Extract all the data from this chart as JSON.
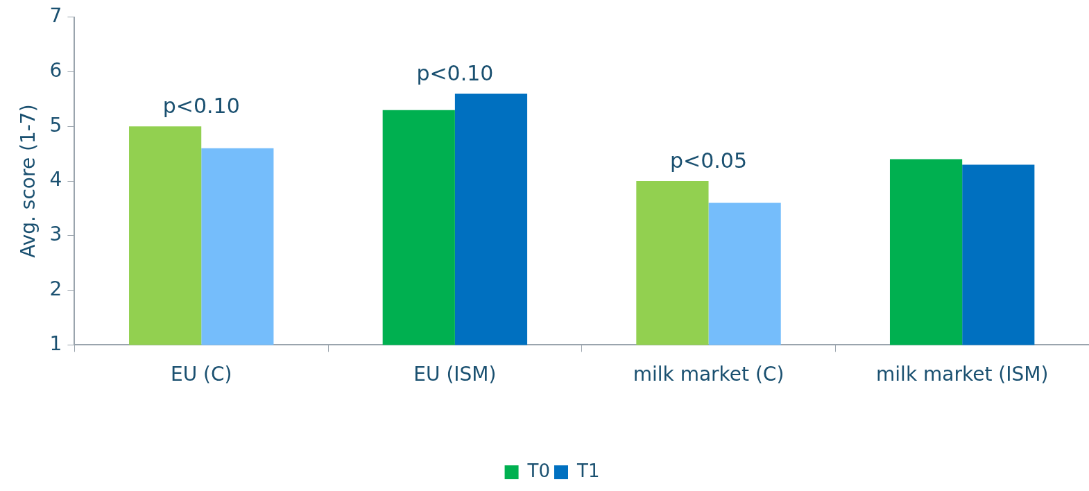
{
  "chart_data": {
    "type": "bar",
    "ylabel": "Avg. score (1-7)",
    "categories": [
      "EU (C)",
      "EU (ISM)",
      "milk market (C)",
      "milk market (ISM)"
    ],
    "series": [
      {
        "name": "T0",
        "color": "#00b050",
        "colors": [
          "#92d050",
          "#00b050",
          "#92d050",
          "#00b050"
        ],
        "values": [
          5.0,
          5.3,
          4.0,
          4.4
        ]
      },
      {
        "name": "T1",
        "color": "#0070c0",
        "colors": [
          "#75bdfb",
          "#0070c0",
          "#75bdfb",
          "#0070c0"
        ],
        "values": [
          4.6,
          5.6,
          3.6,
          4.3
        ]
      }
    ],
    "ylim": [
      1,
      7
    ],
    "yticks": [
      1,
      2,
      3,
      4,
      5,
      6,
      7
    ],
    "grid": false,
    "legend": "bottom",
    "annotations": [
      {
        "text": "p<0.10",
        "x": "EU (C)",
        "y": 5.0
      },
      {
        "text": "p<0.10",
        "x": "EU (ISM)",
        "y": 5.6
      },
      {
        "text": "p<0.05",
        "x": "milk market (C)",
        "y": 4.0
      }
    ]
  }
}
